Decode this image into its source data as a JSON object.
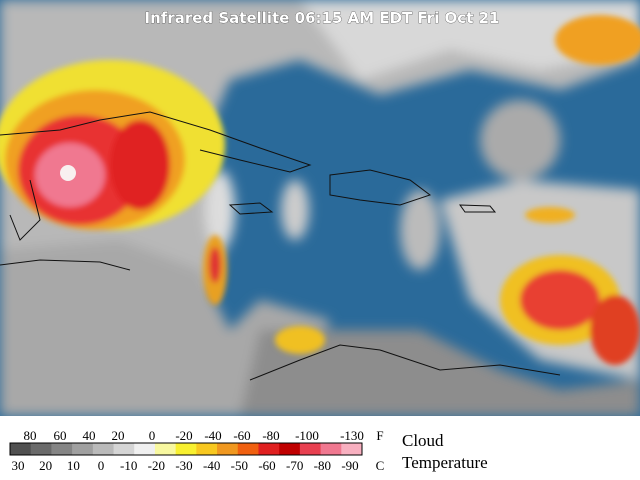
{
  "header": {
    "title": "Infrared Satellite 06:15 AM EDT Fri Oct 21"
  },
  "legend": {
    "fahrenheit_labels": [
      "80",
      "60",
      "40",
      "20",
      "0",
      "-20",
      "-40",
      "-60",
      "-80",
      "-100",
      "-130"
    ],
    "fahrenheit_unit": "F",
    "celsius_labels": [
      "30",
      "20",
      "10",
      "0",
      "-10",
      "-20",
      "-30",
      "-40",
      "-50",
      "-60",
      "-70",
      "-80",
      "-90"
    ],
    "celsius_unit": "C",
    "caption_line1": "Cloud",
    "caption_line2": "Temperature"
  }
}
